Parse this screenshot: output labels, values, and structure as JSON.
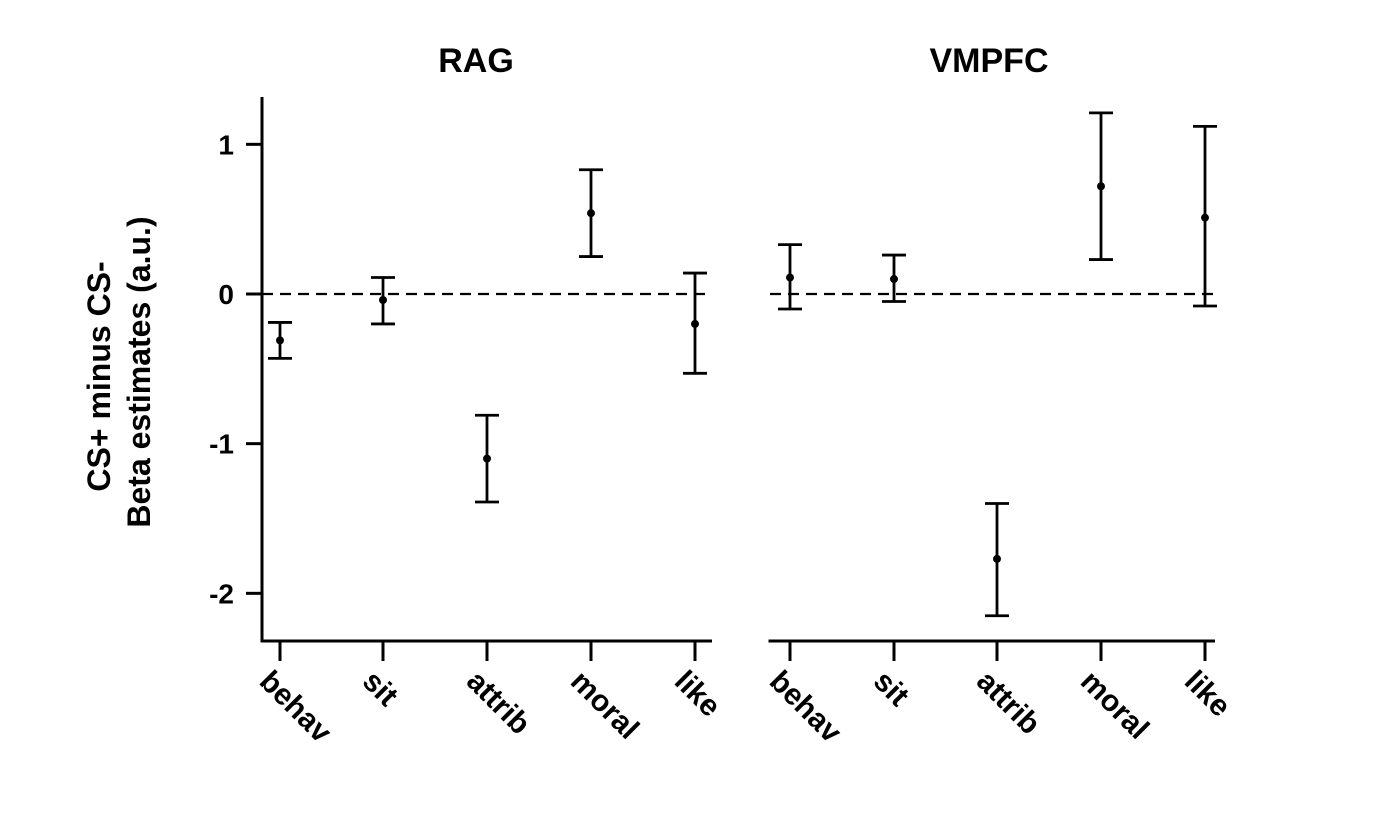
{
  "chart_data": [
    {
      "type": "scatter",
      "title": "RAG",
      "ylabel": "CS+ minus CS-\nBeta estimates (a.u.)",
      "categories": [
        "behav",
        "sit",
        "attrib",
        "moral",
        "like"
      ],
      "values": [
        -0.31,
        -0.04,
        -1.1,
        0.54,
        -0.2
      ],
      "error_low": [
        -0.43,
        -0.2,
        -1.39,
        0.25,
        -0.53
      ],
      "error_high": [
        -0.19,
        0.11,
        -0.81,
        0.83,
        0.14
      ],
      "yticks": [
        1,
        0,
        -1,
        -2
      ],
      "ytick_labels": [
        "1",
        "0",
        "-1",
        "-2"
      ],
      "ylim": [
        -2.3,
        1.32
      ],
      "reference_line": 0,
      "grid": false
    },
    {
      "type": "scatter",
      "title": "VMPFC",
      "categories": [
        "behav",
        "sit",
        "attrib",
        "moral",
        "like"
      ],
      "values": [
        0.11,
        0.1,
        -1.77,
        0.72,
        0.51
      ],
      "error_low": [
        -0.1,
        -0.05,
        -2.15,
        0.23,
        -0.08
      ],
      "error_high": [
        0.33,
        0.26,
        -1.4,
        1.21,
        1.12
      ],
      "ylim": [
        -2.3,
        1.32
      ],
      "reference_line": 0,
      "grid": false
    }
  ]
}
